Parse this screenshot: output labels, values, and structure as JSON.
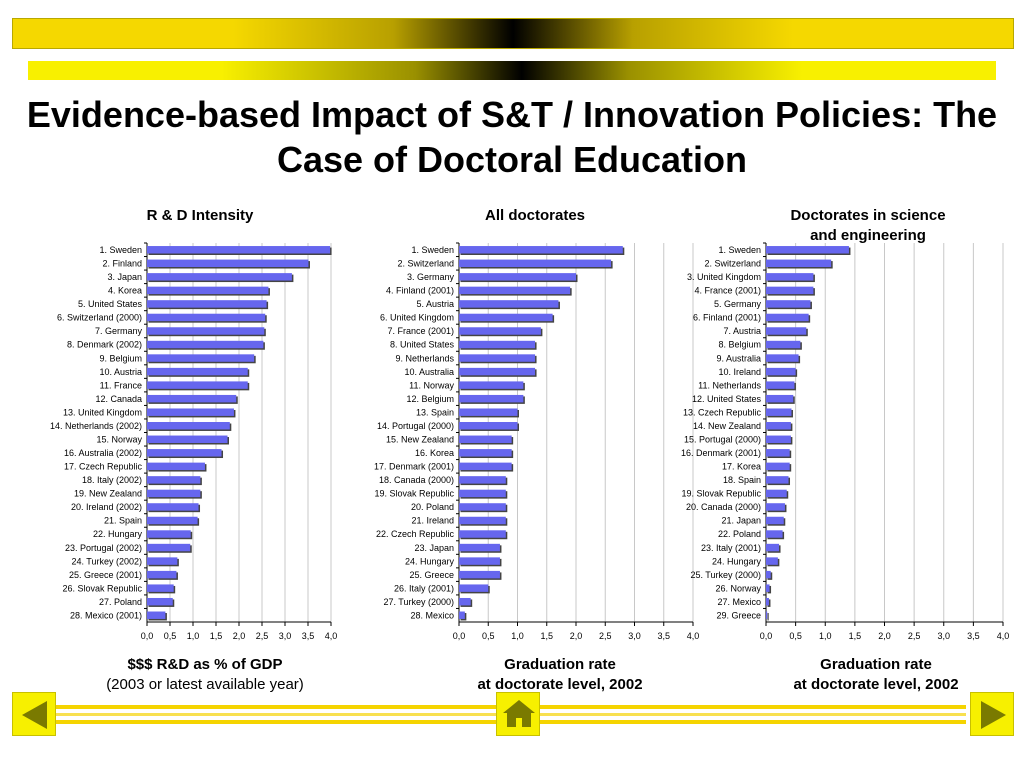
{
  "title": "Evidence-based Impact of S&T / Innovation Policies: The Case of Doctoral Education",
  "chart_data": [
    {
      "type": "bar",
      "orientation": "horizontal",
      "title": "R & D Intensity",
      "caption_line1": "$$$ R&D as % of GDP",
      "caption_line2": "(2003 or latest available year)",
      "xlim": [
        0,
        4
      ],
      "xticks": [
        "0,0",
        "0,5",
        "1,0",
        "1,5",
        "2,0",
        "2,5",
        "3,0",
        "3,5",
        "4,0"
      ],
      "grid": true,
      "categories": [
        "1. Sweden",
        "2. Finland",
        "3. Japan",
        "4. Korea",
        "5. United States",
        "6. Switzerland (2000)",
        "7. Germany",
        "8. Denmark (2002)",
        "9. Belgium",
        "10. Austria",
        "11. France",
        "12. Canada",
        "13. United Kingdom",
        "14. Netherlands (2002)",
        "15. Norway",
        "16. Australia (2002)",
        "17. Czech Republic",
        "18. Italy (2002)",
        "19. New Zealand",
        "20. Ireland (2002)",
        "21. Spain",
        "22. Hungary",
        "23. Portugal (2002)",
        "24. Turkey (2002)",
        "25. Greece (2001)",
        "26. Slovak Republic",
        "27. Poland",
        "28. Mexico (2001)"
      ],
      "values": [
        3.98,
        3.51,
        3.15,
        2.64,
        2.6,
        2.57,
        2.55,
        2.53,
        2.33,
        2.19,
        2.19,
        1.94,
        1.89,
        1.8,
        1.75,
        1.62,
        1.26,
        1.16,
        1.16,
        1.12,
        1.1,
        0.95,
        0.94,
        0.66,
        0.64,
        0.58,
        0.56,
        0.4
      ]
    },
    {
      "type": "bar",
      "orientation": "horizontal",
      "title": "All doctorates",
      "caption_line1": "Graduation rate",
      "caption_line2": "at doctorate level, 2002",
      "xlim": [
        0,
        4
      ],
      "xticks": [
        "0,0",
        "0,5",
        "1,0",
        "1,5",
        "2,0",
        "2,5",
        "3,0",
        "3,5",
        "4,0"
      ],
      "grid": true,
      "categories": [
        "1. Sweden",
        "2. Switzerland",
        "3. Germany",
        "4. Finland (2001)",
        "5. Austria",
        "6. United Kingdom",
        "7. France (2001)",
        "8. United States",
        "9. Netherlands",
        "10. Australia",
        "11. Norway",
        "12. Belgium",
        "13. Spain",
        "14. Portugal (2000)",
        "15. New Zealand",
        "16. Korea",
        "17. Denmark (2001)",
        "18. Canada (2000)",
        "19. Slovak Republic",
        "20. Poland",
        "21. Ireland",
        "22. Czech Republic",
        "23. Japan",
        "24. Hungary",
        "25. Greece",
        "26. Italy (2001)",
        "27. Turkey (2000)",
        "28. Mexico"
      ],
      "values": [
        2.8,
        2.6,
        2.0,
        1.9,
        1.7,
        1.6,
        1.4,
        1.3,
        1.3,
        1.3,
        1.1,
        1.1,
        1.0,
        1.0,
        0.9,
        0.9,
        0.9,
        0.8,
        0.8,
        0.8,
        0.8,
        0.8,
        0.7,
        0.7,
        0.7,
        0.5,
        0.2,
        0.1
      ]
    },
    {
      "type": "bar",
      "orientation": "horizontal",
      "title": "Doctorates in science and engineering",
      "title_line1": "Doctorates in science",
      "title_line2": "and engineering",
      "caption_line1": "Graduation rate",
      "caption_line2": "at doctorate level, 2002",
      "xlim": [
        0,
        4
      ],
      "xticks": [
        "0,0",
        "0,5",
        "1,0",
        "1,5",
        "2,0",
        "2,5",
        "3,0",
        "3,5",
        "4,0"
      ],
      "grid": true,
      "categories": [
        "1. Sweden",
        "2. Switzerland",
        "3. United Kingdom",
        "4. France (2001)",
        "5. Germany",
        "6. Finland (2001)",
        "7. Austria",
        "8. Belgium",
        "9. Australia",
        "10. Ireland",
        "11. Netherlands",
        "12. United States",
        "13. Czech Republic",
        "14. New Zealand",
        "15. Portugal (2000)",
        "16. Denmark (2001)",
        "17. Korea",
        "18. Spain",
        "19. Slovak Republic",
        "20. Canada (2000)",
        "21. Japan",
        "22. Poland",
        "23. Italy (2001)",
        "24. Hungary",
        "25. Turkey (2000)",
        "26. Norway",
        "27. Mexico",
        "29. Greece"
      ],
      "values": [
        1.4,
        1.1,
        0.8,
        0.8,
        0.75,
        0.72,
        0.68,
        0.58,
        0.55,
        0.5,
        0.48,
        0.46,
        0.43,
        0.42,
        0.42,
        0.4,
        0.4,
        0.38,
        0.35,
        0.32,
        0.3,
        0.28,
        0.22,
        0.2,
        0.08,
        0.06,
        0.05,
        0.02
      ]
    }
  ],
  "nav": {
    "prev_icon": "left-arrow-icon",
    "home_icon": "home-icon",
    "next_icon": "right-arrow-icon"
  },
  "colors": {
    "bar": "#6666ee",
    "bar_shadow": "#444444",
    "accent_yellow": "#f7f000",
    "band_dark": "#000000"
  }
}
